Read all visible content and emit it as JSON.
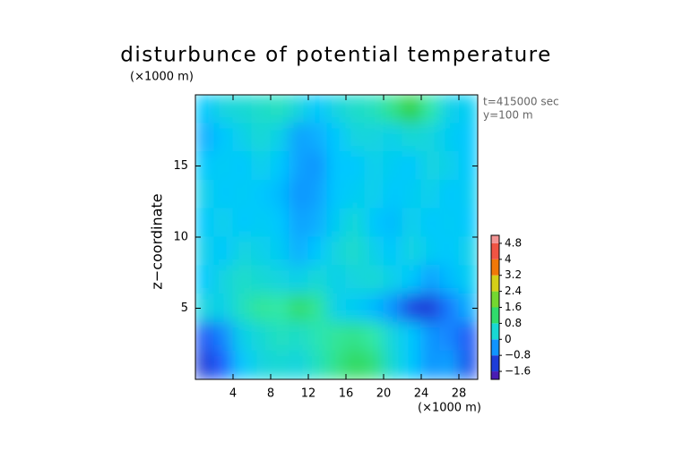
{
  "chart_data": {
    "type": "contour",
    "title": "disturbunce of potential temperature",
    "x_unit_label": "(×1000 m)",
    "y_unit_label": "(×1000 m)",
    "ylabel": "z−coordinate",
    "annotations": [
      "t=415000 sec",
      "y=100 m"
    ],
    "xlim": [
      0,
      30
    ],
    "ylim": [
      0,
      20
    ],
    "xticks": [
      4,
      8,
      12,
      16,
      20,
      24,
      28
    ],
    "yticks": [
      5,
      10,
      15
    ],
    "x": [
      1,
      3,
      5,
      7,
      9,
      11,
      13,
      15,
      17,
      19,
      21,
      23,
      25,
      27,
      29
    ],
    "y": [
      19,
      17,
      15,
      13,
      11,
      9,
      7,
      5,
      3,
      1
    ],
    "z": [
      [
        0,
        0.3,
        0.4,
        0.5,
        0.6,
        0.3,
        0,
        0.3,
        0.5,
        0.6,
        1.0,
        1.6,
        0.8,
        0.2,
        0.1
      ],
      [
        -0.2,
        0,
        0.2,
        0.4,
        0.2,
        -0.3,
        -0.2,
        0,
        0.3,
        0.3,
        0.2,
        0.4,
        0.3,
        0.1,
        0
      ],
      [
        0,
        0.1,
        0,
        0.2,
        0,
        -0.3,
        -0.4,
        0,
        0,
        0.2,
        0.1,
        0,
        0.3,
        0.2,
        0
      ],
      [
        0.2,
        0,
        0.1,
        0,
        -0.1,
        -0.4,
        -0.3,
        0,
        0.1,
        0.2,
        0,
        0.1,
        0.2,
        0,
        0.1
      ],
      [
        0,
        0.2,
        0,
        0.1,
        0,
        -0.3,
        -0.2,
        0.1,
        0.4,
        0,
        -0.1,
        0.2,
        0,
        0.1,
        0
      ],
      [
        0.2,
        0,
        0.3,
        0.2,
        0.1,
        -0.2,
        0,
        0.3,
        0.5,
        0.2,
        0,
        0.3,
        0.1,
        0,
        0.2
      ],
      [
        0,
        0.3,
        0.5,
        0.4,
        0.3,
        0.2,
        0.4,
        0.2,
        0.3,
        0.4,
        0.2,
        0,
        -0.3,
        -0.1,
        0.1
      ],
      [
        0.3,
        0.2,
        0.6,
        0.9,
        0.8,
        1.2,
        0.9,
        0.2,
        0.1,
        -0.1,
        -0.4,
        -1.1,
        -1.2,
        -0.6,
        -0.2
      ],
      [
        -0.9,
        -0.5,
        0.2,
        0.4,
        0.6,
        0.5,
        0.7,
        0.9,
        1.0,
        0.8,
        0.3,
        0,
        -0.4,
        -0.5,
        -0.9
      ],
      [
        -1.2,
        -0.8,
        0,
        0.3,
        0.4,
        0.3,
        0.6,
        1.0,
        1.3,
        1.1,
        0.4,
        0,
        -0.4,
        -0.3,
        -1.0
      ]
    ],
    "colorbar": {
      "clim": [
        -2,
        5.2
      ],
      "ticks": [
        {
          "value": -1.6,
          "label": "−1.6"
        },
        {
          "value": -0.8,
          "label": "−0.8"
        },
        0,
        0.8,
        1.6,
        2.4,
        3.2,
        4,
        4.8
      ],
      "colors": [
        "#7a20b8",
        "#1a1ab0",
        "#2060ff",
        "#00c8ff",
        "#30e8a8",
        "#30d030",
        "#b8e030",
        "#f0c000",
        "#f03010",
        "#f07878",
        "#f8b0b0"
      ]
    }
  }
}
